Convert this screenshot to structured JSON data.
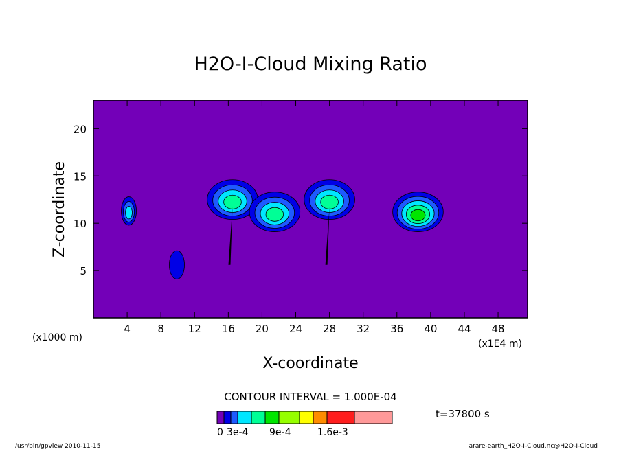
{
  "chart_data": {
    "type": "heatmap",
    "title": "H2O-I-Cloud Mixing Ratio",
    "xlabel": "X-coordinate",
    "ylabel": "Z-coordinate",
    "x_unit_left": "(x1000 m)",
    "x_unit_right": "(x1E4 m)",
    "xlim": [
      0,
      51.5
    ],
    "ylim": [
      0,
      23
    ],
    "xticks": [
      "4",
      "8",
      "12",
      "16",
      "20",
      "24",
      "28",
      "32",
      "36",
      "40",
      "44",
      "48"
    ],
    "xtick_values": [
      4,
      8,
      12,
      16,
      20,
      24,
      28,
      32,
      36,
      40,
      44,
      48
    ],
    "yticks": [
      "5",
      "10",
      "15",
      "20"
    ],
    "ytick_values": [
      5,
      10,
      15,
      20
    ],
    "background_color": "#7300b8",
    "contour_interval_label": "CONTOUR INTERVAL = 1.000E-04",
    "time_label": "t=37800 s",
    "colorbar": {
      "colors": [
        "#7300b8",
        "#0000e6",
        "#1e5aff",
        "#00e6ff",
        "#00ff96",
        "#00e600",
        "#96ff00",
        "#ffff00",
        "#ff8c00",
        "#ff1e1e",
        "#ff9999"
      ],
      "labels": [
        "0",
        "3e-4",
        "9e-4",
        "1.6e-3"
      ]
    },
    "cells": [
      {
        "x": 4.2,
        "z": 11.3,
        "peak_level": 3
      },
      {
        "x": 9.9,
        "z": 5.6,
        "peak_level": 1
      },
      {
        "x": 16.5,
        "z": 12.5,
        "peak_level": 4
      },
      {
        "x": 21.5,
        "z": 11.2,
        "peak_level": 4
      },
      {
        "x": 28.0,
        "z": 12.5,
        "peak_level": 4
      },
      {
        "x": 38.5,
        "z": 11.2,
        "peak_level": 5
      }
    ]
  },
  "footer": {
    "left": "/usr/bin/gpview   2010-11-15",
    "right": "arare-earth_H2O-I-Cloud.nc@H2O-I-Cloud"
  }
}
